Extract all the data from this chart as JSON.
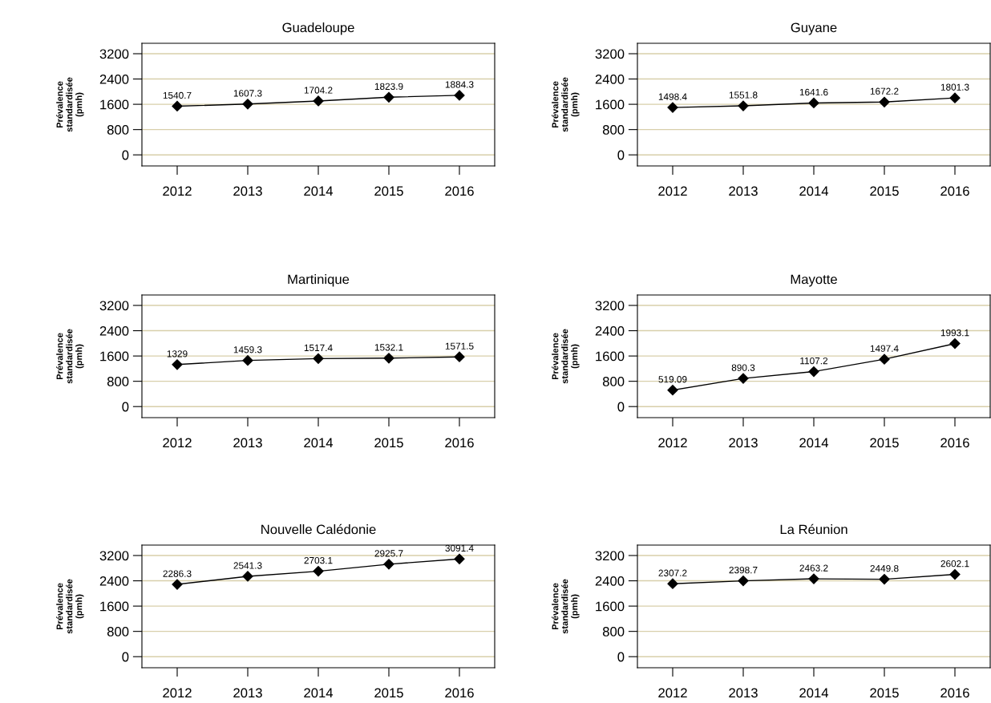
{
  "chart_data": [
    {
      "type": "line",
      "title": "Guadeloupe",
      "ylabel": "Prévalence\nstandardisée\n(pmh)",
      "categories": [
        "2012",
        "2013",
        "2014",
        "2015",
        "2016"
      ],
      "series": [
        {
          "color": "#000000",
          "values": [
            1540.7,
            1607.3,
            1704.2,
            1823.9,
            1884.3
          ]
        }
      ],
      "ylim": [
        -350,
        3530
      ],
      "yticks": [
        0,
        800,
        1600,
        2400,
        3200
      ],
      "grid": "y",
      "marker": "diamond",
      "data_labels": true
    },
    {
      "type": "line",
      "title": "Guyane",
      "ylabel": "Prévalence\nstandardisée\n(pmh)",
      "categories": [
        "2012",
        "2013",
        "2014",
        "2015",
        "2016"
      ],
      "series": [
        {
          "color": "#000000",
          "values": [
            1498.4,
            1551.8,
            1641.6,
            1672.2,
            1801.3
          ]
        }
      ],
      "ylim": [
        -350,
        3530
      ],
      "yticks": [
        0,
        800,
        1600,
        2400,
        3200
      ],
      "grid": "y",
      "marker": "diamond",
      "data_labels": true
    },
    {
      "type": "line",
      "title": "Martinique",
      "ylabel": "Prévalence\nstandardisée\n(pmh)",
      "categories": [
        "2012",
        "2013",
        "2014",
        "2015",
        "2016"
      ],
      "series": [
        {
          "color": "#000000",
          "values": [
            1329,
            1459.3,
            1517.4,
            1532.1,
            1571.5
          ]
        }
      ],
      "ylim": [
        -350,
        3530
      ],
      "yticks": [
        0,
        800,
        1600,
        2400,
        3200
      ],
      "grid": "y",
      "marker": "diamond",
      "data_labels": true
    },
    {
      "type": "line",
      "title": "Mayotte",
      "ylabel": "Prévalence\nstandardisée\n(pmh)",
      "categories": [
        "2012",
        "2013",
        "2014",
        "2015",
        "2016"
      ],
      "series": [
        {
          "color": "#000000",
          "values": [
            519.09,
            890.3,
            1107.2,
            1497.4,
            1993.1
          ]
        }
      ],
      "ylim": [
        -350,
        3530
      ],
      "yticks": [
        0,
        800,
        1600,
        2400,
        3200
      ],
      "grid": "y",
      "marker": "diamond",
      "data_labels": true
    },
    {
      "type": "line",
      "title": "Nouvelle Calédonie",
      "ylabel": "Prévalence\nstandardisée\n(pmh)",
      "categories": [
        "2012",
        "2013",
        "2014",
        "2015",
        "2016"
      ],
      "series": [
        {
          "color": "#000000",
          "values": [
            2286.3,
            2541.3,
            2703.1,
            2925.7,
            3091.4
          ]
        }
      ],
      "ylim": [
        -350,
        3530
      ],
      "yticks": [
        0,
        800,
        1600,
        2400,
        3200
      ],
      "grid": "y",
      "marker": "diamond",
      "data_labels": true
    },
    {
      "type": "line",
      "title": "La Réunion",
      "ylabel": "Prévalence\nstandardisée\n(pmh)",
      "categories": [
        "2012",
        "2013",
        "2014",
        "2015",
        "2016"
      ],
      "series": [
        {
          "color": "#000000",
          "values": [
            2307.2,
            2398.7,
            2463.2,
            2449.8,
            2602.1
          ]
        }
      ],
      "ylim": [
        -350,
        3530
      ],
      "yticks": [
        0,
        800,
        1600,
        2400,
        3200
      ],
      "grid": "y",
      "marker": "diamond",
      "data_labels": true
    }
  ]
}
